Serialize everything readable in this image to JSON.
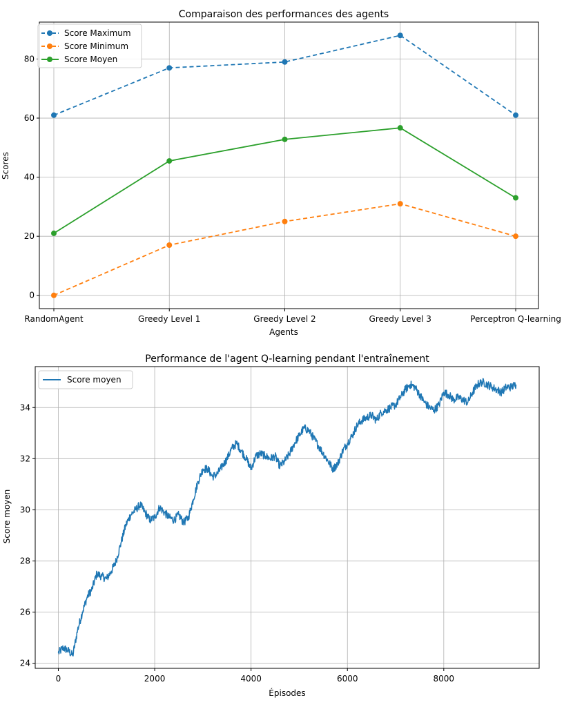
{
  "chart_data": [
    {
      "type": "line",
      "title": "Comparaison des performances des agents",
      "xlabel": "Agents",
      "ylabel": "Scores",
      "categories": [
        "RandomAgent",
        "Greedy Level 1",
        "Greedy Level 2",
        "Greedy Level 3",
        "Perceptron Q-learning"
      ],
      "ylim": [
        -4.5,
        92.5
      ],
      "yticks": [
        0,
        20,
        40,
        60,
        80
      ],
      "grid": true,
      "legend_position": "upper-left",
      "series": [
        {
          "name": "Score Maximum",
          "values": [
            61,
            77,
            79,
            88,
            61
          ],
          "color": "#1f77b4",
          "style": "dashed",
          "marker": "circle"
        },
        {
          "name": "Score Minimum",
          "values": [
            0,
            17,
            25,
            31,
            20
          ],
          "color": "#ff7f0e",
          "style": "dashed",
          "marker": "circle"
        },
        {
          "name": "Score Moyen",
          "values": [
            21,
            45.5,
            52.8,
            56.7,
            33
          ],
          "color": "#2ca02c",
          "style": "solid",
          "marker": "circle"
        }
      ]
    },
    {
      "type": "line",
      "title": "Performance de l'agent Q-learning pendant l'entraînement",
      "xlabel": "Épisodes",
      "ylabel": "Score moyen",
      "xlim": [
        -480,
        9980
      ],
      "ylim": [
        23.8,
        35.6
      ],
      "xticks": [
        0,
        2000,
        4000,
        6000,
        8000
      ],
      "yticks": [
        24,
        26,
        28,
        30,
        32,
        34
      ],
      "grid": true,
      "legend_position": "upper-left",
      "series": [
        {
          "name": "Score moyen",
          "color": "#1f77b4",
          "style": "solid",
          "x": [
            0,
            100,
            200,
            300,
            400,
            500,
            600,
            700,
            800,
            900,
            1000,
            1100,
            1200,
            1300,
            1400,
            1500,
            1600,
            1700,
            1800,
            1900,
            2000,
            2100,
            2200,
            2300,
            2400,
            2500,
            2600,
            2700,
            2800,
            2900,
            3000,
            3100,
            3200,
            3300,
            3400,
            3500,
            3600,
            3700,
            3800,
            3900,
            4000,
            4100,
            4200,
            4300,
            4400,
            4500,
            4600,
            4700,
            4800,
            4900,
            5000,
            5100,
            5200,
            5300,
            5400,
            5500,
            5600,
            5700,
            5800,
            5900,
            6000,
            6100,
            6200,
            6300,
            6400,
            6500,
            6600,
            6700,
            6800,
            6900,
            7000,
            7100,
            7200,
            7300,
            7400,
            7500,
            7600,
            7700,
            7800,
            7900,
            8000,
            8100,
            8200,
            8300,
            8400,
            8500,
            8600,
            8700,
            8800,
            8900,
            9000,
            9100,
            9200,
            9300,
            9400,
            9500
          ],
          "y": [
            24.4,
            24.6,
            24.5,
            24.3,
            25.3,
            26.0,
            26.6,
            26.9,
            27.5,
            27.4,
            27.3,
            27.6,
            28.0,
            28.7,
            29.4,
            29.8,
            30.0,
            30.2,
            29.9,
            29.6,
            29.7,
            30.1,
            29.9,
            29.7,
            29.6,
            29.8,
            29.5,
            29.7,
            30.4,
            31.1,
            31.6,
            31.6,
            31.3,
            31.4,
            31.7,
            32.0,
            32.4,
            32.6,
            32.3,
            32.0,
            31.6,
            32.1,
            32.2,
            32.1,
            32.0,
            32.1,
            31.7,
            31.9,
            32.2,
            32.6,
            32.9,
            33.2,
            33.1,
            32.8,
            32.5,
            32.2,
            31.9,
            31.6,
            31.8,
            32.3,
            32.6,
            32.9,
            33.3,
            33.5,
            33.6,
            33.7,
            33.5,
            33.8,
            33.9,
            34.0,
            34.1,
            34.4,
            34.7,
            34.9,
            34.8,
            34.5,
            34.2,
            34.0,
            33.9,
            34.1,
            34.6,
            34.5,
            34.3,
            34.4,
            34.3,
            34.2,
            34.6,
            34.9,
            35.0,
            34.9,
            34.8,
            34.7,
            34.6,
            34.8,
            34.8,
            34.9
          ]
        }
      ]
    }
  ]
}
